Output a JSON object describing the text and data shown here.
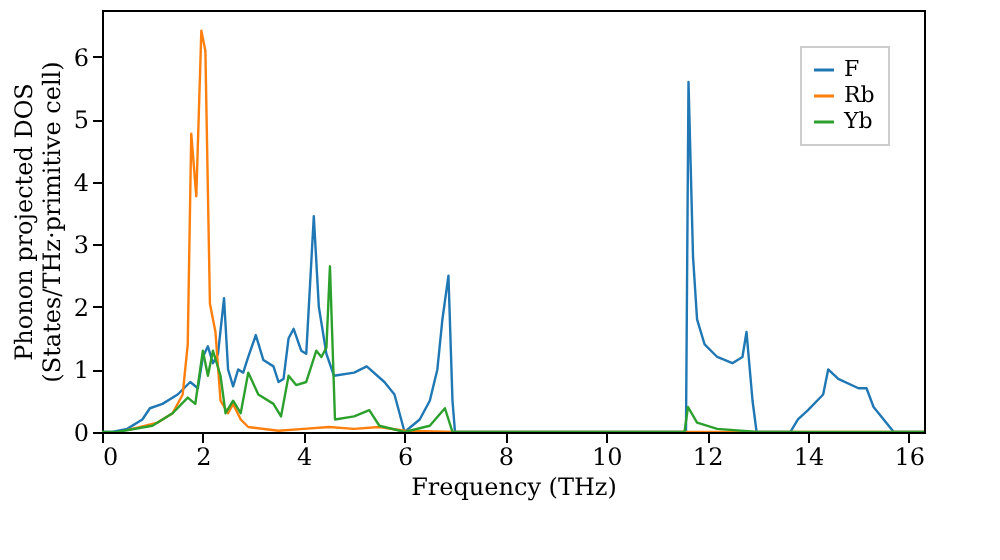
{
  "chart_data": {
    "type": "line",
    "xlabel": "Frequency (THz)",
    "ylabel": "Phonon projected DOS\n(States/THz·primitive cell)",
    "xlim": [
      0,
      16.3
    ],
    "ylim": [
      0,
      6.75
    ],
    "xticks": [
      0,
      2,
      4,
      6,
      8,
      10,
      12,
      14,
      16
    ],
    "yticks": [
      0,
      1,
      2,
      3,
      4,
      5,
      6
    ],
    "grid": false,
    "legend": "top right",
    "marker": "none",
    "line_style": "solid",
    "series": [
      {
        "name": "F",
        "color": "#1f77b4",
        "x": [
          0,
          0.2,
          0.5,
          0.8,
          0.95,
          1.2,
          1.5,
          1.75,
          1.9,
          2.0,
          2.1,
          2.2,
          2.3,
          2.42,
          2.5,
          2.6,
          2.7,
          2.8,
          2.9,
          3.05,
          3.2,
          3.4,
          3.5,
          3.6,
          3.7,
          3.8,
          3.95,
          4.05,
          4.2,
          4.3,
          4.45,
          4.6,
          5.0,
          5.25,
          5.6,
          5.8,
          6.0,
          6.3,
          6.5,
          6.65,
          6.75,
          6.87,
          6.95,
          7.0,
          11.58,
          11.63,
          11.72,
          11.8,
          11.95,
          12.2,
          12.5,
          12.7,
          12.78,
          12.9,
          12.98,
          13.65,
          13.8,
          14.0,
          14.3,
          14.4,
          14.6,
          15.0,
          15.16,
          15.3,
          15.5,
          15.7,
          16.3
        ],
        "values": [
          0,
          0,
          0.05,
          0.2,
          0.38,
          0.45,
          0.6,
          0.8,
          0.7,
          1.2,
          1.37,
          1.1,
          1.25,
          2.14,
          1.0,
          0.73,
          1.0,
          0.95,
          1.2,
          1.55,
          1.15,
          1.05,
          0.8,
          0.85,
          1.5,
          1.65,
          1.3,
          1.25,
          3.45,
          2.0,
          1.25,
          0.9,
          0.95,
          1.05,
          0.8,
          0.6,
          0,
          0.2,
          0.5,
          1.0,
          1.8,
          2.5,
          0.5,
          0,
          0,
          5.6,
          2.8,
          1.8,
          1.4,
          1.2,
          1.1,
          1.2,
          1.6,
          0.5,
          0,
          0,
          0.2,
          0.35,
          0.6,
          1.0,
          0.85,
          0.7,
          0.7,
          0.4,
          0.2,
          0,
          0
        ]
      },
      {
        "name": "Rb",
        "color": "#ff7f0e",
        "x": [
          0.5,
          1.1,
          1.4,
          1.6,
          1.7,
          1.77,
          1.87,
          1.97,
          2.05,
          2.14,
          2.25,
          2.35,
          2.5,
          2.6,
          2.75,
          2.9,
          3.5,
          4.0,
          4.5,
          5.0,
          5.5,
          6.0,
          7.0,
          16.3
        ],
        "values": [
          0.03,
          0.15,
          0.3,
          0.6,
          1.4,
          4.77,
          3.77,
          6.42,
          6.1,
          2.05,
          1.6,
          0.5,
          0.3,
          0.45,
          0.2,
          0.08,
          0.02,
          0.05,
          0.08,
          0.05,
          0.08,
          0.02,
          0,
          0
        ]
      },
      {
        "name": "Yb",
        "color": "#2ca02c",
        "x": [
          0,
          0.3,
          1.0,
          1.4,
          1.7,
          1.85,
          2.0,
          2.1,
          2.2,
          2.35,
          2.45,
          2.6,
          2.75,
          2.9,
          3.1,
          3.4,
          3.55,
          3.7,
          3.85,
          4.05,
          4.25,
          4.35,
          4.45,
          4.52,
          4.62,
          5.0,
          5.3,
          5.5,
          6.0,
          6.5,
          6.8,
          6.95,
          11.55,
          11.62,
          11.8,
          12.2,
          13.0,
          16.3
        ],
        "values": [
          0,
          0,
          0.1,
          0.3,
          0.55,
          0.45,
          1.3,
          0.9,
          1.3,
          0.9,
          0.3,
          0.5,
          0.3,
          0.95,
          0.6,
          0.45,
          0.25,
          0.9,
          0.75,
          0.8,
          1.3,
          1.2,
          1.35,
          2.65,
          0.2,
          0.25,
          0.35,
          0.1,
          0,
          0.1,
          0.38,
          0,
          0,
          0.4,
          0.15,
          0.05,
          0,
          0
        ]
      }
    ]
  }
}
